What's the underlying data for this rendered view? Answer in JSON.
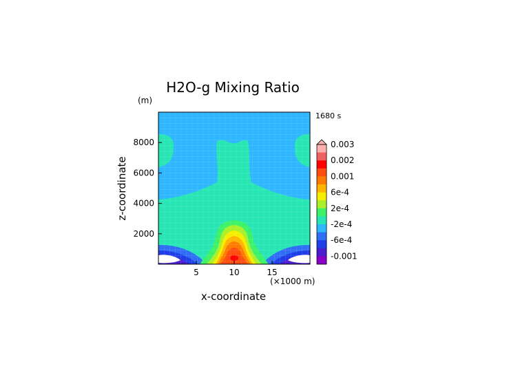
{
  "chart_data": {
    "type": "heatmap",
    "title": "H2O-g Mixing Ratio",
    "xlabel": "x-coordinate",
    "ylabel": "z-coordinate",
    "x_unit": "(×1000 m)",
    "y_unit": "(m)",
    "time_label": "1680 s",
    "xlim": [
      0,
      20
    ],
    "ylim": [
      0,
      10000
    ],
    "x_ticks": [
      "5",
      "10",
      "15"
    ],
    "x_tick_values": [
      5,
      10,
      15
    ],
    "y_ticks": [
      "2000",
      "4000",
      "6000",
      "8000"
    ],
    "y_tick_values": [
      2000,
      4000,
      6000,
      8000
    ],
    "colorbar": {
      "levels": [
        {
          "value": -0.001,
          "color": "#8a00c8"
        },
        {
          "value": -0.0008,
          "color": "#4a1ed0"
        },
        {
          "value": -0.0006,
          "color": "#1f3ee8"
        },
        {
          "value": -0.0004,
          "color": "#2f6ef5"
        },
        {
          "value": -0.0002,
          "color": "#2eb6ff"
        },
        {
          "value": 0,
          "color": "#27e6b4"
        },
        {
          "value": 0.0002,
          "color": "#3cf268"
        },
        {
          "value": 0.0004,
          "color": "#a9ef2a"
        },
        {
          "value": 0.0006,
          "color": "#f6ee00"
        },
        {
          "value": 0.0008,
          "color": "#ffb400"
        },
        {
          "value": 0.001,
          "color": "#ff7a00"
        },
        {
          "value": 0.0015,
          "color": "#ff4d12"
        },
        {
          "value": 0.002,
          "color": "#ff0000"
        },
        {
          "value": 0.0025,
          "color": "#f06262"
        },
        {
          "value": 0.003,
          "color": "#ffb0b0"
        }
      ],
      "tick_labels": [
        "0.003",
        "0.002",
        "0.001",
        "6e-4",
        "2e-4",
        "-2e-4",
        "-6e-4",
        "-0.001"
      ],
      "tick_values": [
        0.003,
        0.002,
        0.001,
        0.0006,
        0.0002,
        -0.0002,
        -0.0006,
        -0.001
      ]
    },
    "field_description_colors": {
      "background": "#2eb6ff",
      "plume": "#27e6b4",
      "minimum_center": "#ffffff"
    }
  }
}
